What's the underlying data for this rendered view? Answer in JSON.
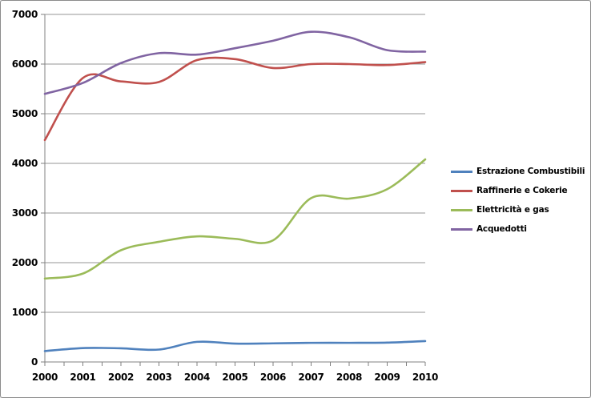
{
  "window": {
    "background_color": "#ffffff",
    "border_color": "#8c8c8c"
  },
  "chart_data": {
    "type": "line",
    "title": "",
    "xlabel": "",
    "ylabel": "",
    "smooth_lines": true,
    "grid": true,
    "legend_position": "right",
    "gridline_color": "#969696",
    "axis_color": "#808080",
    "label_color": "#000000",
    "x_categories": [
      "2000",
      "2001",
      "2002",
      "2003",
      "2004",
      "2005",
      "2006",
      "2007",
      "2008",
      "2009",
      "2010"
    ],
    "y_axis": {
      "min": 0,
      "max": 7000,
      "step": 1000,
      "tick_labels": [
        "0",
        "1000",
        "2000",
        "3000",
        "4000",
        "5000",
        "6000",
        "7000"
      ]
    },
    "series": [
      {
        "name": "Estrazione Combustibili",
        "color": "#4F81BD",
        "values": [
          220,
          280,
          275,
          250,
          405,
          370,
          375,
          385,
          385,
          390,
          420
        ]
      },
      {
        "name": "Raffinerie e Cokerie",
        "color": "#C0504D",
        "values": [
          4470,
          5720,
          5650,
          5640,
          6080,
          6100,
          5920,
          6000,
          6000,
          5980,
          6040
        ]
      },
      {
        "name": "Elettricità e gas",
        "color": "#9BBB59",
        "values": [
          1680,
          1780,
          2250,
          2420,
          2530,
          2480,
          2450,
          3300,
          3290,
          3480,
          4080
        ]
      },
      {
        "name": "Acquedotti",
        "color": "#8064A2",
        "values": [
          5400,
          5620,
          6020,
          6220,
          6190,
          6320,
          6470,
          6650,
          6540,
          6280,
          6250
        ]
      }
    ]
  }
}
